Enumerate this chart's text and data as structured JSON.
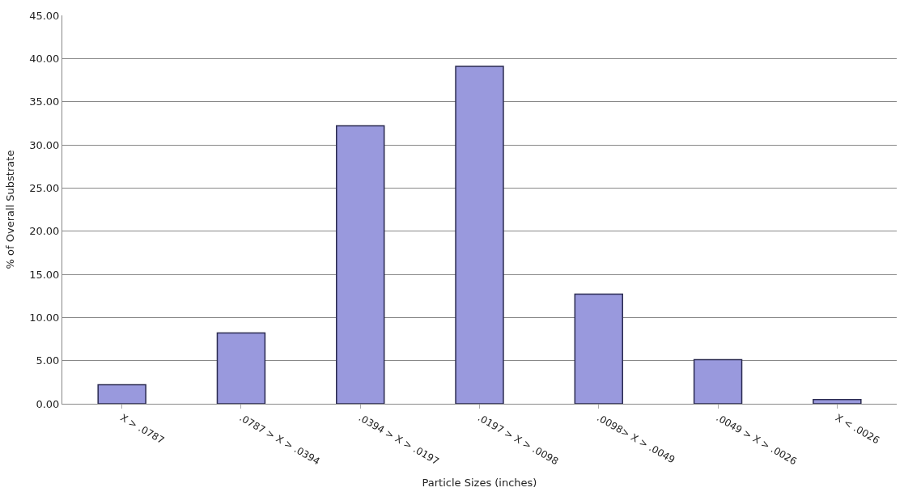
{
  "chart_data": {
    "type": "bar",
    "xlabel": "Particle Sizes (inches)",
    "ylabel": "% of Overall Substrate",
    "categories": [
      "X > .0787",
      ".0787 > X > .0394",
      ".0394 > X > .0197",
      ".0197 > X > .0098",
      ".0098> X > .0049",
      ".0049 > X > .0026",
      "X < .0026"
    ],
    "values": [
      2.2,
      8.2,
      32.2,
      39.1,
      12.7,
      5.1,
      0.5
    ],
    "color": "#9999dd",
    "ylim": [
      0,
      45
    ],
    "yticks": [
      {
        "value": 0,
        "label": "0.00"
      },
      {
        "value": 5,
        "label": "5.00"
      },
      {
        "value": 10,
        "label": "10.00"
      },
      {
        "value": 15,
        "label": "15.00"
      },
      {
        "value": 20,
        "label": "20.00"
      },
      {
        "value": 25,
        "label": "25.00"
      },
      {
        "value": 30,
        "label": "30.00"
      },
      {
        "value": 35,
        "label": "35.00"
      },
      {
        "value": 40,
        "label": "40.00"
      },
      {
        "value": 45,
        "label": "45.00"
      }
    ],
    "grid": "y"
  }
}
